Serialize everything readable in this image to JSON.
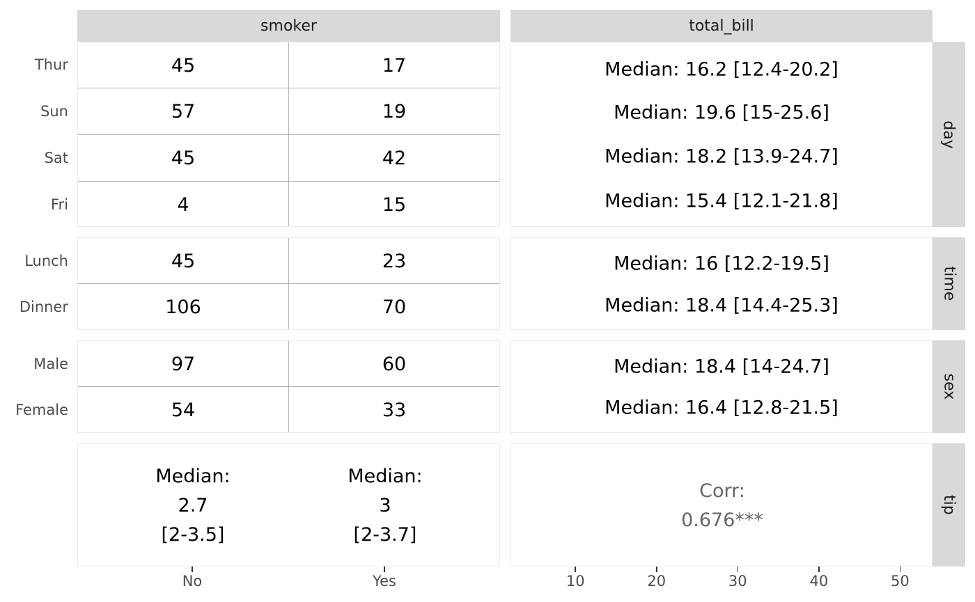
{
  "chart_data": {
    "type": "table",
    "column_strips": [
      "smoker",
      "total_bill"
    ],
    "row_strips": [
      "day",
      "time",
      "sex",
      "tip"
    ],
    "smoker_levels": [
      "No",
      "Yes"
    ],
    "counts": {
      "day": {
        "rows": [
          "Thur",
          "Sun",
          "Sat",
          "Fri"
        ],
        "No": [
          45,
          57,
          45,
          4
        ],
        "Yes": [
          17,
          19,
          42,
          15
        ]
      },
      "time": {
        "rows": [
          "Lunch",
          "Dinner"
        ],
        "No": [
          45,
          106
        ],
        "Yes": [
          23,
          70
        ]
      },
      "sex": {
        "rows": [
          "Male",
          "Female"
        ],
        "No": [
          97,
          54
        ],
        "Yes": [
          60,
          33
        ]
      }
    },
    "total_bill_medians": {
      "day": [
        "Median: 16.2 [12.4-20.2]",
        "Median: 19.6 [15-25.6]",
        "Median: 18.2 [13.9-24.7]",
        "Median: 15.4 [12.1-21.8]"
      ],
      "time": [
        "Median: 16 [12.2-19.5]",
        "Median: 18.4 [14.4-25.3]"
      ],
      "sex": [
        "Median: 18.4 [14-24.7]",
        "Median: 16.4 [12.8-21.5]"
      ]
    },
    "tip_by_smoker": {
      "No": [
        "Median:",
        "2.7",
        "[2-3.5]"
      ],
      "Yes": [
        "Median:",
        "3",
        "[2-3.7]"
      ]
    },
    "correlation": {
      "label": "Corr:",
      "value": "0.676***"
    },
    "x_axis_smoker": {
      "ticks": [
        "No",
        "Yes"
      ]
    },
    "x_axis_total_bill": {
      "ticks": [
        "10",
        "20",
        "30",
        "40",
        "50"
      ],
      "range": [
        2,
        54
      ]
    }
  }
}
